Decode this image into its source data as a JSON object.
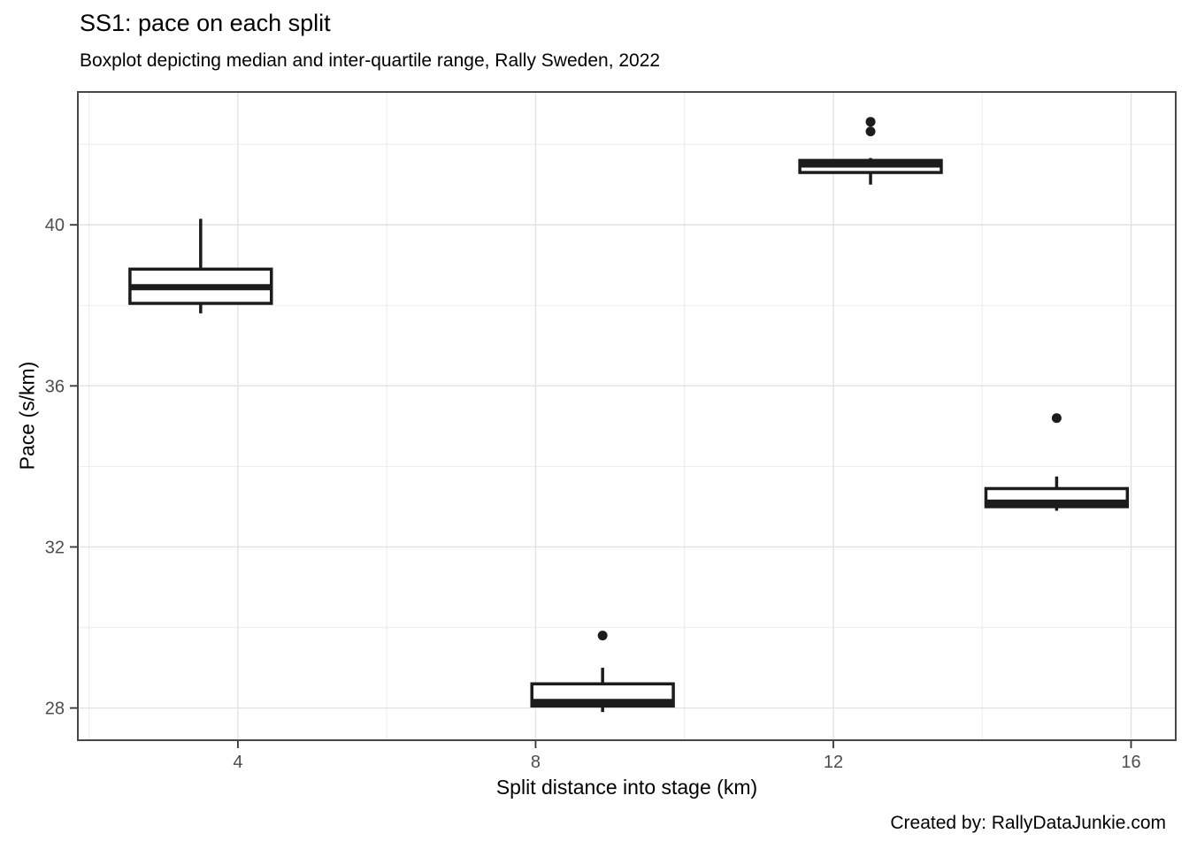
{
  "chart_data": {
    "type": "boxplot",
    "title": "SS1: pace on each split",
    "subtitle": "Boxplot depicting median and inter-quartile range, Rally Sweden, 2022",
    "caption": "Created by: RallyDataJunkie.com",
    "xlabel": "Split distance into stage (km)",
    "ylabel": "Pace (s/km)",
    "x_domain": [
      1.85,
      16.6
    ],
    "y_domain": [
      27.2,
      43.3
    ],
    "x_ticks": [
      4,
      8,
      12,
      16
    ],
    "y_ticks": [
      28,
      32,
      36,
      40
    ],
    "x_minor": [
      2,
      6,
      10,
      14
    ],
    "y_minor": [
      30,
      34,
      38,
      42
    ],
    "grid": true,
    "legend": "none",
    "box_half_width_km": 0.95,
    "boxes": [
      {
        "split_km": 3.5,
        "whisker_low": 37.8,
        "q1": 38.05,
        "median": 38.45,
        "q3": 38.9,
        "whisker_high": 40.15,
        "outliers": []
      },
      {
        "split_km": 8.9,
        "whisker_low": 27.9,
        "q1": 28.05,
        "median": 28.15,
        "q3": 28.6,
        "whisker_high": 29.0,
        "outliers": [
          29.8
        ]
      },
      {
        "split_km": 12.5,
        "whisker_low": 41.0,
        "q1": 41.3,
        "median": 41.5,
        "q3": 41.6,
        "whisker_high": 41.66,
        "outliers": [
          42.32,
          42.56
        ]
      },
      {
        "split_km": 15.0,
        "whisker_low": 32.9,
        "q1": 33.0,
        "median": 33.1,
        "q3": 33.45,
        "whisker_high": 33.75,
        "outliers": [
          35.2
        ]
      }
    ],
    "colors": {
      "box_stroke": "#1c1c1c",
      "box_fill": "#ffffff",
      "panel_border": "#474747",
      "grid_major": "#e2e2e2",
      "grid_minor": "#eeeeee",
      "axis_tick": "#333333",
      "tick_label": "#4d4d4d",
      "text": "#000000",
      "background": "#ffffff"
    }
  }
}
